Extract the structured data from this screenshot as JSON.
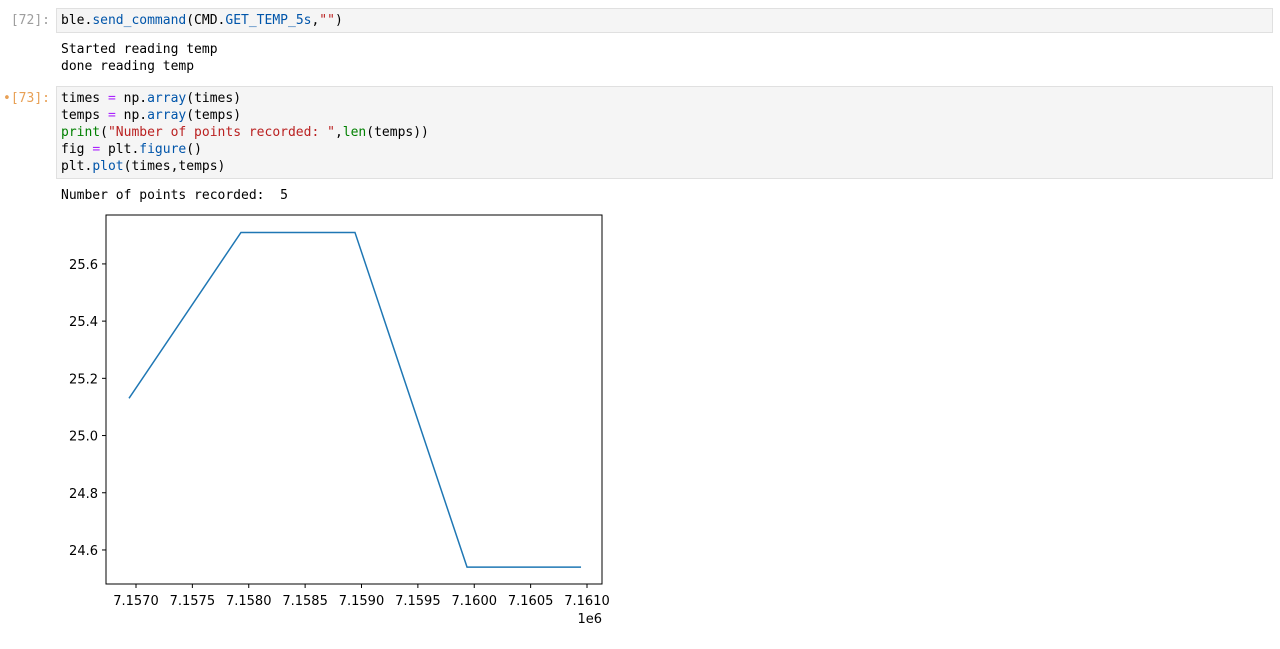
{
  "cells": [
    {
      "prompt": "[72]:",
      "prompt_color": "#9e9e9e",
      "code": [
        [
          {
            "text": "ble.",
            "color": "#000000"
          },
          {
            "text": "send_command",
            "color": "#0055aa"
          },
          {
            "text": "(CMD.",
            "color": "#000000"
          },
          {
            "text": "GET_TEMP_5s",
            "color": "#0055aa"
          },
          {
            "text": ",",
            "color": "#000000"
          },
          {
            "text": "\"\"",
            "color": "#ba2121"
          },
          {
            "text": ")",
            "color": "#000000"
          }
        ]
      ],
      "output": [
        "Started reading temp",
        "done reading temp"
      ]
    },
    {
      "prompt": "•[73]:",
      "prompt_color": "#e8a055",
      "code": [
        [
          {
            "text": "times ",
            "color": "#000000"
          },
          {
            "text": "=",
            "color": "#aa22ff"
          },
          {
            "text": " np.",
            "color": "#000000"
          },
          {
            "text": "array",
            "color": "#0055aa"
          },
          {
            "text": "(times)",
            "color": "#000000"
          }
        ],
        [
          {
            "text": "temps ",
            "color": "#000000"
          },
          {
            "text": "=",
            "color": "#aa22ff"
          },
          {
            "text": " np.",
            "color": "#000000"
          },
          {
            "text": "array",
            "color": "#0055aa"
          },
          {
            "text": "(temps)",
            "color": "#000000"
          }
        ],
        [
          {
            "text": "print",
            "color": "#008000"
          },
          {
            "text": "(",
            "color": "#000000"
          },
          {
            "text": "\"Number of points recorded: \"",
            "color": "#ba2121"
          },
          {
            "text": ",",
            "color": "#000000"
          },
          {
            "text": "len",
            "color": "#008000"
          },
          {
            "text": "(temps))",
            "color": "#000000"
          }
        ],
        [
          {
            "text": "fig ",
            "color": "#000000"
          },
          {
            "text": "=",
            "color": "#aa22ff"
          },
          {
            "text": " plt.",
            "color": "#000000"
          },
          {
            "text": "figure",
            "color": "#0055aa"
          },
          {
            "text": "()",
            "color": "#000000"
          }
        ],
        [
          {
            "text": "plt.",
            "color": "#000000"
          },
          {
            "text": "plot",
            "color": "#0055aa"
          },
          {
            "text": "(times,temps)",
            "color": "#000000"
          }
        ]
      ],
      "output": [
        "Number of points recorded:  5"
      ]
    }
  ],
  "chart_data": {
    "type": "line",
    "x": [
      7156938,
      7157931,
      7158942,
      7159936,
      7160947
    ],
    "series": [
      {
        "color": "#1f77b4",
        "values": [
          25.13,
          25.71,
          25.71,
          24.54,
          24.54
        ]
      }
    ],
    "xlim": [
      7156734,
      7161133
    ],
    "ylim": [
      24.481,
      25.771
    ],
    "xticks": [
      {
        "value": 7157000,
        "label": "7.1570"
      },
      {
        "value": 7157500,
        "label": "7.1575"
      },
      {
        "value": 7158000,
        "label": "7.1580"
      },
      {
        "value": 7158500,
        "label": "7.1585"
      },
      {
        "value": 7159000,
        "label": "7.1590"
      },
      {
        "value": 7159500,
        "label": "7.1595"
      },
      {
        "value": 7160000,
        "label": "7.1600"
      },
      {
        "value": 7160500,
        "label": "7.1605"
      },
      {
        "value": 7161000,
        "label": "7.1610"
      }
    ],
    "yticks": [
      {
        "value": 24.6,
        "label": "24.6"
      },
      {
        "value": 24.8,
        "label": "24.8"
      },
      {
        "value": 25.0,
        "label": "25.0"
      },
      {
        "value": 25.2,
        "label": "25.2"
      },
      {
        "value": 25.4,
        "label": "25.4"
      },
      {
        "value": 25.6,
        "label": "25.6"
      }
    ],
    "x_offset_label": "1e6",
    "grid": false
  }
}
